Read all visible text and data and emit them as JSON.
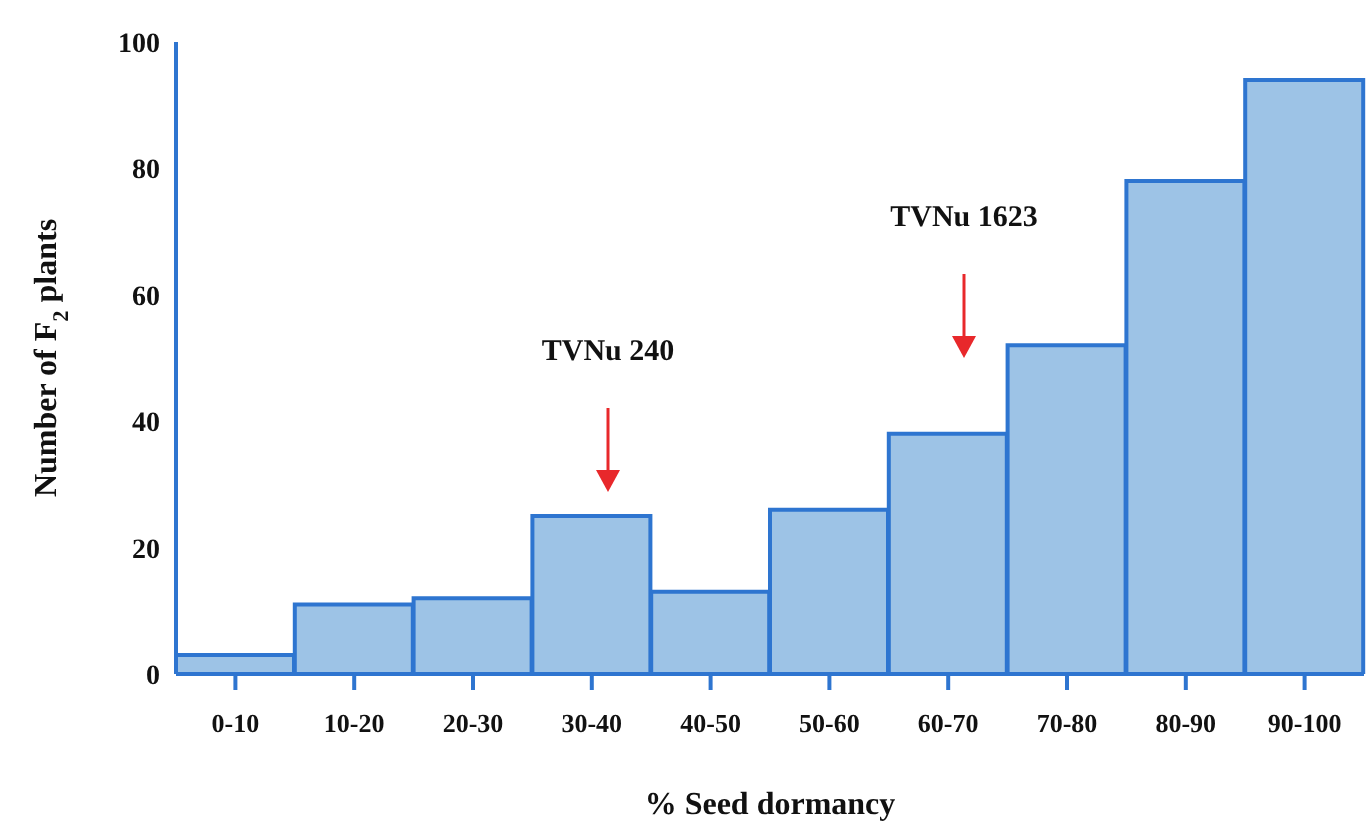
{
  "chart_data": {
    "type": "bar",
    "xlabel": "% Seed dormancy",
    "ylabel": "Number of F$_{2}$ plants",
    "categories": [
      "0-10",
      "10-20",
      "20-30",
      "30-40",
      "40-50",
      "50-60",
      "60-70",
      "70-80",
      "80-90",
      "90-100"
    ],
    "values": [
      3,
      11,
      12,
      25,
      13,
      26,
      38,
      52,
      78,
      94
    ],
    "color": "#9dc3e6",
    "ylim": [
      0,
      100
    ],
    "yticks": [
      0,
      20,
      40,
      60,
      80,
      100
    ],
    "annotations": [
      "TVNu 240",
      "TVNu 1623"
    ],
    "grid": false,
    "legend": false
  }
}
